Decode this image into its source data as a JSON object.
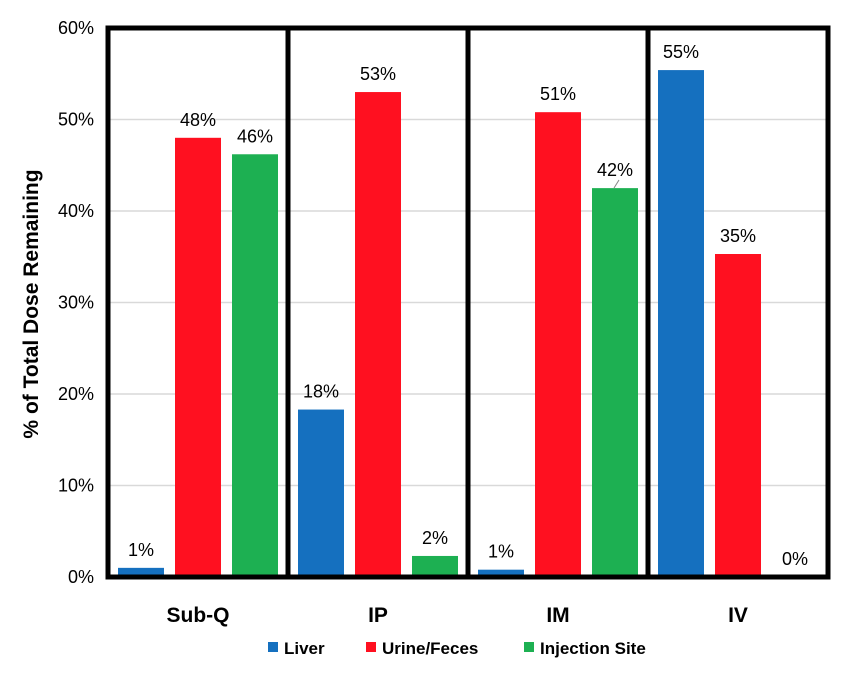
{
  "chart_data": {
    "type": "bar",
    "title": "",
    "xlabel": "",
    "ylabel": "% of Total Dose Remaining",
    "ylim": [
      0,
      60
    ],
    "yticks": [
      0,
      10,
      20,
      30,
      40,
      50,
      60
    ],
    "ytick_labels": [
      "0%",
      "10%",
      "20%",
      "30%",
      "40%",
      "50%",
      "60%"
    ],
    "grid": true,
    "legend_position": "bottom",
    "categories": [
      "Sub-Q",
      "IP",
      "IM",
      "IV"
    ],
    "series": [
      {
        "name": "Liver",
        "color": "#1570BF",
        "values": [
          1,
          18.3,
          0.8,
          55.4
        ],
        "labels": [
          "1%",
          "18%",
          "1%",
          "55%"
        ]
      },
      {
        "name": "Urine/Feces",
        "color": "#FF1020",
        "values": [
          48,
          53,
          50.8,
          35.3
        ],
        "labels": [
          "48%",
          "53%",
          "51%",
          "35%"
        ]
      },
      {
        "name": "Injection Site",
        "color": "#1DB052",
        "values": [
          46.2,
          2.3,
          42.5,
          0
        ],
        "labels": [
          "46%",
          "2%",
          "42%",
          "0%"
        ]
      }
    ]
  }
}
